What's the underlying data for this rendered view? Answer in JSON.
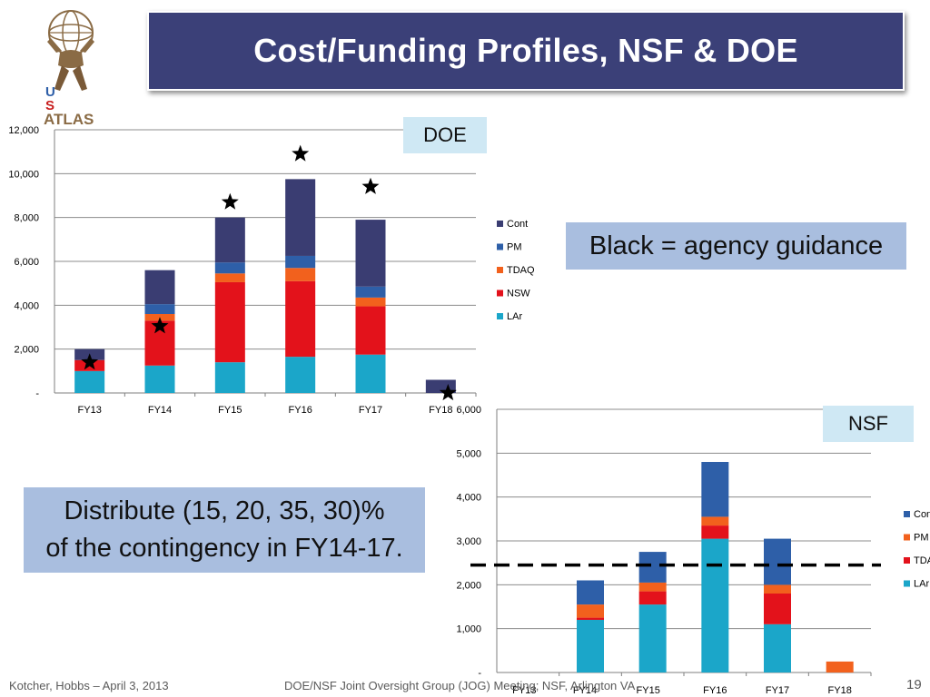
{
  "title": "Cost/Funding Profiles, NSF & DOE",
  "logo": {
    "line1": "U",
    "line2": "S",
    "line3": "ATLAS",
    "icon": "atlas-figure-icon"
  },
  "doe_label": "DOE",
  "nsf_label": "NSF",
  "guidance_note": "Black = agency guidance",
  "distribute_note": {
    "line1": "Distribute (15, 20, 35, 30)%",
    "line2": "of the contingency in FY14-17."
  },
  "footer": {
    "left": "Kotcher, Hobbs – April 3, 2013",
    "center": "DOE/NSF Joint Oversight Group (JOG) Meeting; NSF, Arlington VA",
    "page": "19"
  },
  "chart_data": [
    {
      "id": "doe",
      "type": "bar",
      "stacked": true,
      "categories": [
        "FY13",
        "FY14",
        "FY15",
        "FY16",
        "FY17",
        "FY18"
      ],
      "ylim": [
        0,
        12000
      ],
      "yticks": [
        0,
        2000,
        4000,
        6000,
        8000,
        10000,
        12000
      ],
      "ytick_labels": [
        "-",
        "2,000",
        "4,000",
        "6,000",
        "8,000",
        "10,000",
        "12,000"
      ],
      "grid": true,
      "legend": "right",
      "series": [
        {
          "name": "LAr",
          "color": "#1ba6c9",
          "values": [
            1000,
            1250,
            1400,
            1650,
            1750,
            0
          ]
        },
        {
          "name": "NSW",
          "color": "#e3121b",
          "values": [
            500,
            2050,
            3650,
            3450,
            2200,
            0
          ]
        },
        {
          "name": "TDAQ",
          "color": "#f2611d",
          "values": [
            0,
            300,
            400,
            600,
            400,
            0
          ]
        },
        {
          "name": "PM",
          "color": "#2e5fa8",
          "values": [
            0,
            450,
            500,
            550,
            500,
            0
          ]
        },
        {
          "name": "Cont",
          "color": "#3a3d72",
          "values": [
            500,
            1550,
            2050,
            3500,
            3050,
            600
          ]
        }
      ],
      "guidance": [
        1400,
        3050,
        8700,
        10900,
        9400,
        0
      ],
      "marker_icon": "star-icon"
    },
    {
      "id": "nsf",
      "type": "bar",
      "stacked": true,
      "categories": [
        "FY13",
        "FY14",
        "FY15",
        "FY16",
        "FY17",
        "FY18"
      ],
      "ylim": [
        0,
        6000
      ],
      "yticks": [
        0,
        1000,
        2000,
        3000,
        4000,
        5000,
        6000
      ],
      "ytick_labels": [
        "-",
        "1,000",
        "2,000",
        "3,000",
        "4,000",
        "5,000",
        "6,000"
      ],
      "grid": true,
      "legend": "right",
      "series": [
        {
          "name": "LAr",
          "color": "#1ba6c9",
          "values": [
            0,
            1200,
            1550,
            3050,
            1100,
            0
          ]
        },
        {
          "name": "TDAQ",
          "color": "#e3121b",
          "values": [
            0,
            50,
            300,
            300,
            700,
            0
          ]
        },
        {
          "name": "PM",
          "color": "#f2611d",
          "values": [
            0,
            300,
            200,
            200,
            200,
            250
          ]
        },
        {
          "name": "Cont",
          "color": "#2e5fa8",
          "values": [
            0,
            550,
            700,
            1250,
            1050,
            0
          ]
        }
      ],
      "legend_labels": [
        "Cont",
        "PM",
        "TDAC",
        "LAr"
      ],
      "guidance_level": 2450
    }
  ]
}
